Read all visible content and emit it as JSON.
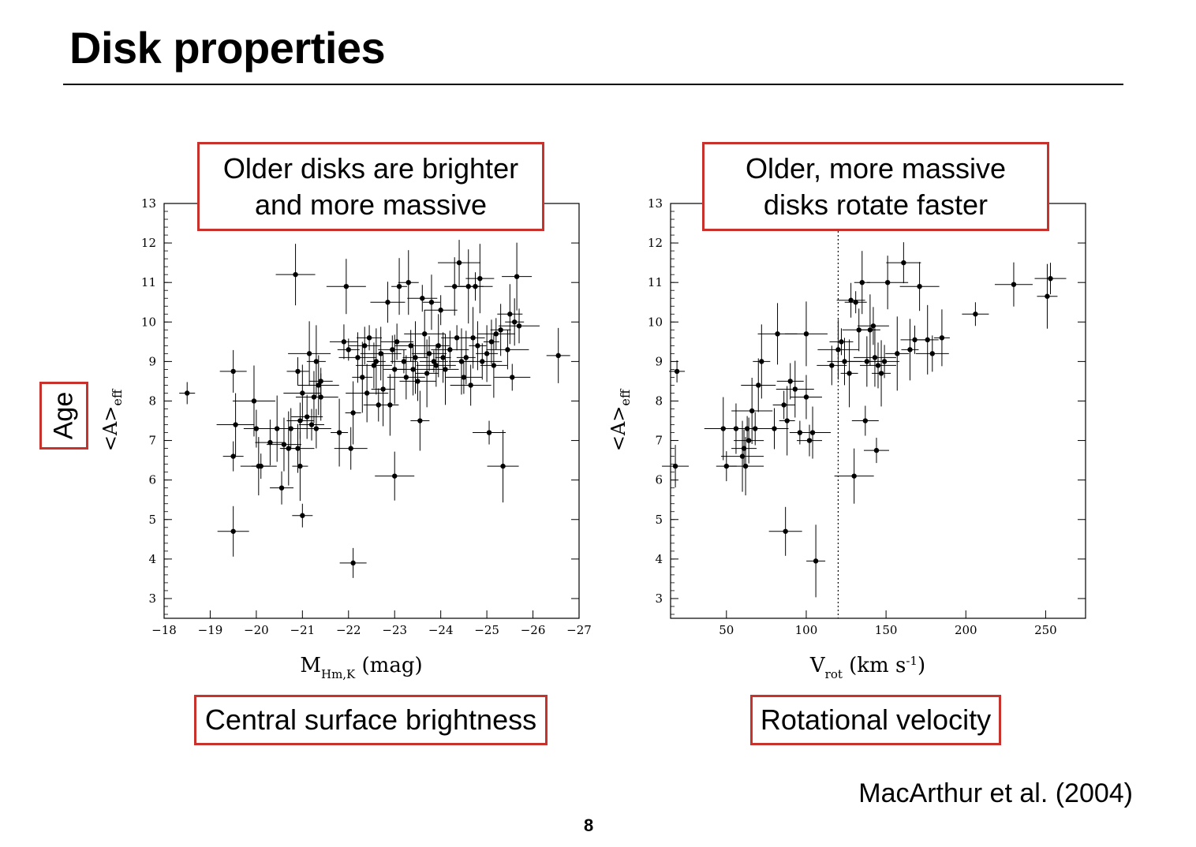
{
  "slide": {
    "title": "Disk properties",
    "page_number": "8",
    "citation": "MacArthur et al. (2004)",
    "y_callout": "Age",
    "callouts": {
      "left_top_line1": "Older disks are brighter",
      "left_top_line2": "and more massive",
      "right_top_line1": "Older, more massive",
      "right_top_line2": "disks rotate faster",
      "left_bottom": "Central surface brightness",
      "right_bottom": "Rotational velocity"
    },
    "colors": {
      "callout_border": "#c8322c",
      "ink": "#000000"
    }
  },
  "chart_data": [
    {
      "type": "scatter",
      "ylabel": "<A>eff",
      "xlabel": "MHm,K (mag)",
      "xlim": [
        -18,
        -27
      ],
      "ylim": [
        2.5,
        13
      ],
      "x_ticks": [
        -18,
        -19,
        -20,
        -21,
        -22,
        -23,
        -24,
        -25,
        -26,
        -27
      ],
      "y_ticks": [
        3,
        4,
        5,
        6,
        7,
        8,
        9,
        10,
        11,
        12,
        13
      ],
      "error_bars": true,
      "points": [
        [
          -18.5,
          8.2
        ],
        [
          -19.5,
          8.75
        ],
        [
          -19.55,
          7.4
        ],
        [
          -19.5,
          6.6
        ],
        [
          -19.5,
          4.7
        ],
        [
          -19.95,
          8.0
        ],
        [
          -20.0,
          7.3
        ],
        [
          -20.05,
          6.35
        ],
        [
          -20.1,
          6.35
        ],
        [
          -20.3,
          6.95
        ],
        [
          -20.45,
          7.3
        ],
        [
          -20.55,
          5.8
        ],
        [
          -20.6,
          6.9
        ],
        [
          -20.7,
          6.8
        ],
        [
          -20.75,
          7.3
        ],
        [
          -20.85,
          11.2
        ],
        [
          -20.9,
          8.75
        ],
        [
          -20.9,
          6.8
        ],
        [
          -20.95,
          6.35
        ],
        [
          -20.95,
          7.5
        ],
        [
          -21.0,
          8.2
        ],
        [
          -21.0,
          5.1
        ],
        [
          -21.1,
          7.6
        ],
        [
          -21.15,
          9.2
        ],
        [
          -21.2,
          7.4
        ],
        [
          -21.25,
          8.1
        ],
        [
          -21.3,
          9.0
        ],
        [
          -21.3,
          7.3
        ],
        [
          -21.35,
          8.4
        ],
        [
          -21.4,
          8.5
        ],
        [
          -21.4,
          8.1
        ],
        [
          -21.8,
          7.2
        ],
        [
          -21.9,
          9.5
        ],
        [
          -21.95,
          10.9
        ],
        [
          -22.0,
          9.3
        ],
        [
          -22.05,
          6.8
        ],
        [
          -22.1,
          7.7
        ],
        [
          -22.1,
          3.9
        ],
        [
          -22.2,
          9.1
        ],
        [
          -22.3,
          8.6
        ],
        [
          -22.35,
          9.4
        ],
        [
          -22.4,
          8.2
        ],
        [
          -22.45,
          9.6
        ],
        [
          -22.55,
          8.9
        ],
        [
          -22.6,
          9.0
        ],
        [
          -22.65,
          7.9
        ],
        [
          -22.7,
          9.2
        ],
        [
          -22.75,
          8.3
        ],
        [
          -22.85,
          10.5
        ],
        [
          -22.9,
          7.9
        ],
        [
          -22.95,
          9.3
        ],
        [
          -23.0,
          6.1
        ],
        [
          -23.0,
          8.8
        ],
        [
          -23.05,
          9.5
        ],
        [
          -23.1,
          10.9
        ],
        [
          -23.2,
          9.0
        ],
        [
          -23.25,
          8.6
        ],
        [
          -23.3,
          11.0
        ],
        [
          -23.35,
          9.4
        ],
        [
          -23.4,
          8.8
        ],
        [
          -23.45,
          9.1
        ],
        [
          -23.5,
          8.5
        ],
        [
          -23.55,
          7.5
        ],
        [
          -23.6,
          10.6
        ],
        [
          -23.65,
          9.7
        ],
        [
          -23.7,
          8.7
        ],
        [
          -23.75,
          9.2
        ],
        [
          -23.8,
          10.5
        ],
        [
          -23.85,
          9.0
        ],
        [
          -23.9,
          8.9
        ],
        [
          -23.95,
          9.4
        ],
        [
          -24.0,
          10.3
        ],
        [
          -24.05,
          9.1
        ],
        [
          -24.1,
          8.8
        ],
        [
          -24.2,
          9.3
        ],
        [
          -24.3,
          10.9
        ],
        [
          -24.35,
          9.6
        ],
        [
          -24.4,
          11.5
        ],
        [
          -24.45,
          9.0
        ],
        [
          -24.5,
          8.6
        ],
        [
          -24.55,
          9.1
        ],
        [
          -24.6,
          10.9
        ],
        [
          -24.65,
          8.4
        ],
        [
          -24.7,
          9.6
        ],
        [
          -24.75,
          10.9
        ],
        [
          -24.8,
          9.4
        ],
        [
          -24.85,
          11.1
        ],
        [
          -24.9,
          9.0
        ],
        [
          -25.0,
          9.2
        ],
        [
          -25.05,
          7.2
        ],
        [
          -25.1,
          9.5
        ],
        [
          -25.15,
          8.9
        ],
        [
          -25.2,
          9.7
        ],
        [
          -25.3,
          9.8
        ],
        [
          -25.35,
          6.35
        ],
        [
          -25.45,
          9.3
        ],
        [
          -25.5,
          10.2
        ],
        [
          -25.55,
          8.6
        ],
        [
          -25.6,
          10.0
        ],
        [
          -25.65,
          11.15
        ],
        [
          -25.7,
          9.9
        ],
        [
          -26.55,
          9.15
        ]
      ]
    },
    {
      "type": "scatter",
      "ylabel": "<A>eff",
      "xlabel": "Vrot (km s-1)",
      "xlim": [
        15,
        275
      ],
      "ylim": [
        2.5,
        13
      ],
      "x_ticks": [
        50,
        100,
        150,
        200,
        250
      ],
      "y_ticks": [
        3,
        4,
        5,
        6,
        7,
        8,
        9,
        10,
        11,
        12,
        13
      ],
      "reference_line_x": 120,
      "error_bars": true,
      "points": [
        [
          19,
          8.75
        ],
        [
          18,
          6.35
        ],
        [
          48,
          7.3
        ],
        [
          50,
          6.35
        ],
        [
          56,
          7.3
        ],
        [
          60,
          6.6
        ],
        [
          61,
          6.8
        ],
        [
          62,
          6.35
        ],
        [
          63,
          7.3
        ],
        [
          64,
          7.0
        ],
        [
          66,
          7.75
        ],
        [
          68,
          7.3
        ],
        [
          70,
          8.4
        ],
        [
          72,
          9.0
        ],
        [
          80,
          7.3
        ],
        [
          82,
          9.7
        ],
        [
          86,
          7.9
        ],
        [
          87,
          4.7
        ],
        [
          88,
          7.5
        ],
        [
          90,
          8.5
        ],
        [
          93,
          8.3
        ],
        [
          96,
          7.2
        ],
        [
          100,
          8.1
        ],
        [
          100,
          9.7
        ],
        [
          102,
          7.0
        ],
        [
          104,
          7.2
        ],
        [
          106,
          3.95
        ],
        [
          116,
          8.9
        ],
        [
          120,
          9.3
        ],
        [
          122,
          9.5
        ],
        [
          124,
          9.0
        ],
        [
          127,
          8.7
        ],
        [
          128,
          10.55
        ],
        [
          130,
          6.1
        ],
        [
          131,
          10.5
        ],
        [
          133,
          9.8
        ],
        [
          135,
          11.0
        ],
        [
          137,
          7.5
        ],
        [
          138,
          9.0
        ],
        [
          140,
          9.8
        ],
        [
          142,
          9.9
        ],
        [
          143,
          9.1
        ],
        [
          144,
          6.75
        ],
        [
          145,
          8.9
        ],
        [
          147,
          8.7
        ],
        [
          149,
          9.0
        ],
        [
          151,
          11.0
        ],
        [
          157,
          9.2
        ],
        [
          161,
          11.5
        ],
        [
          165,
          9.3
        ],
        [
          168,
          9.55
        ],
        [
          171,
          10.9
        ],
        [
          176,
          9.55
        ],
        [
          179,
          9.2
        ],
        [
          185,
          9.6
        ],
        [
          206,
          10.2
        ],
        [
          230,
          10.95
        ],
        [
          251,
          10.65
        ],
        [
          253,
          11.1
        ]
      ]
    }
  ]
}
